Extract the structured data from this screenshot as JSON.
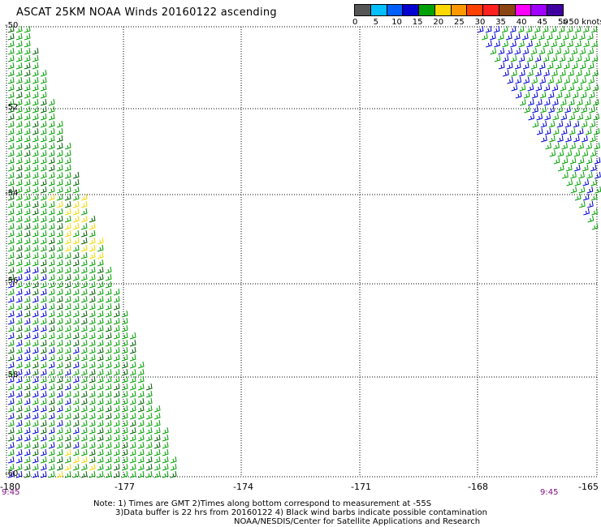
{
  "title": "ASCAT 25KM NOAA Winds 20160122 ascending",
  "scale": {
    "colors": [
      "#555555",
      "#00bfff",
      "#0060ff",
      "#0000d0",
      "#00a000",
      "#ffd800",
      "#ff9800",
      "#ff4000",
      "#ff2020",
      "#8b4513",
      "#ff00ff",
      "#a000ff",
      "#4000a0"
    ],
    "labels": [
      "0",
      "5",
      "10",
      "15",
      "20",
      "25",
      "30",
      "35",
      "40",
      "45",
      "50"
    ],
    "units_label": ">50 knots"
  },
  "axes": {
    "x_ticks": [
      "-180",
      "-177",
      "-174",
      "-171",
      "-168",
      "-165"
    ],
    "y_ticks": [
      "-50",
      "-52",
      "-54",
      "-56",
      "-58",
      "-60"
    ]
  },
  "times": {
    "left": "9:45",
    "right": "9:45"
  },
  "notes": [
    "Note: 1) Times are GMT 2)Times along bottom correspond to measurement at -55S",
    "3)Data buffer is 22 hrs from 20160122 4) Black wind barbs indicate possible contamination",
    "NOAA/NESDIS/Center for Satellite Applications and Research"
  ]
}
